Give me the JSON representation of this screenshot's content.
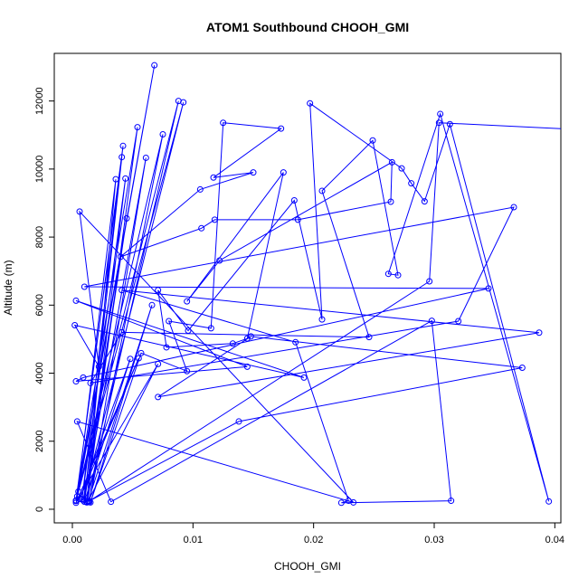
{
  "chart_data": {
    "type": "scatter",
    "title": "ATOM1 Southbound CHOOH_GMI",
    "xlabel": "CHOOH_GMI",
    "ylabel": "Altitude (m)",
    "xlim": [
      -0.0015,
      0.0405
    ],
    "ylim": [
      -400,
      13400
    ],
    "x_ticks": [
      0.0,
      0.01,
      0.02,
      0.03,
      0.04
    ],
    "x_tick_labels": [
      "0.00",
      "0.01",
      "0.02",
      "0.03",
      "0.04"
    ],
    "y_ticks": [
      0,
      2000,
      4000,
      6000,
      8000,
      10000,
      12000
    ],
    "y_tick_labels": [
      "0",
      "2000",
      "4000",
      "6000",
      "8000",
      "10000",
      "12000"
    ],
    "grid": false,
    "markers": "open-circle",
    "connected": true,
    "series": [
      {
        "color": "#0000ff",
        "x": [
          0.0005,
          0.0068,
          0.0003,
          0.0042,
          0.0008,
          0.0044,
          0.0012,
          0.0054,
          0.0003,
          0.0041,
          0.001,
          0.0061,
          0.0014,
          0.0075,
          0.0004,
          0.0036,
          0.0012,
          0.0088,
          0.0003,
          0.0092,
          0.0009,
          0.0045,
          0.001,
          0.0048,
          0.0006,
          0.0055,
          0.0003,
          0.0071,
          0.0013,
          0.0066,
          0.0015,
          0.0057,
          0.0095,
          0.008,
          0.0115,
          0.0125,
          0.0173,
          0.0117,
          0.015,
          0.0106,
          0.004,
          0.0107,
          0.0118,
          0.0187,
          0.0264,
          0.0265,
          0.0122,
          0.0095,
          0.0175,
          0.0145,
          0.0133,
          0.0078,
          0.0071,
          0.0096,
          0.0184,
          0.0207,
          0.0197,
          0.0273,
          0.0281,
          0.0292,
          0.0313,
          0.0395,
          0.0305,
          0.0262,
          0.027,
          0.0249,
          0.0207,
          0.0246,
          0.0041,
          0.0015,
          0.032,
          0.0366,
          0.001,
          0.0345,
          0.0009,
          0.0003,
          0.0145,
          0.0003,
          0.0192,
          0.0002,
          0.0022,
          0.0006,
          0.0233,
          0.0004,
          0.0032,
          0.0298,
          0.0314,
          0.0223,
          0.0229,
          0.0185,
          0.0041,
          0.0387,
          0.0071,
          0.0148,
          0.0373,
          0.0138,
          0.0014,
          0.0296,
          0.0304,
          0.0443
        ],
        "y": [
          520,
          13050,
          250,
          10680,
          300,
          9720,
          220,
          11230,
          260,
          10350,
          280,
          10330,
          210,
          11020,
          380,
          9700,
          200,
          12000,
          240,
          11960,
          260,
          8550,
          220,
          4420,
          300,
          4440,
          190,
          4270,
          230,
          6000,
          200,
          4590,
          4060,
          5530,
          5320,
          11360,
          11190,
          9750,
          9900,
          9400,
          7420,
          8260,
          8510,
          8510,
          9040,
          10200,
          7310,
          6110,
          9900,
          5020,
          4870,
          4760,
          6440,
          5250,
          9080,
          5580,
          11930,
          10020,
          9580,
          9050,
          11320,
          230,
          11620,
          6920,
          6880,
          10840,
          9360,
          5060,
          5200,
          3710,
          5530,
          8880,
          6540,
          6490,
          3870,
          3760,
          4190,
          6130,
          3870,
          5410,
          4190,
          8750,
          200,
          2580,
          220,
          5540,
          250,
          190,
          250,
          4910,
          6440,
          5190,
          3300,
          5080,
          4160,
          2580,
          240,
          6700,
          11360,
          11120
        ]
      }
    ]
  }
}
